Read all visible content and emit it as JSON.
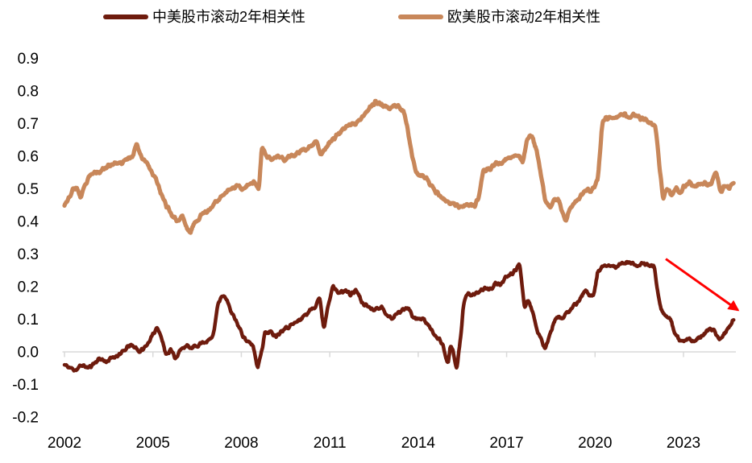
{
  "chart_data": {
    "type": "line",
    "title": "",
    "xlabel": "",
    "ylabel": "",
    "x_axis": {
      "ticks": [
        2002,
        2005,
        2008,
        2011,
        2014,
        2017,
        2020,
        2023
      ],
      "range": [
        2002,
        2024.9
      ],
      "gridlines": false
    },
    "y_axis": {
      "ticks": [
        0.9,
        0.8,
        0.7,
        0.6,
        0.5,
        0.4,
        0.3,
        0.2,
        0.1,
        0.0,
        -0.1,
        -0.2
      ],
      "range": [
        -0.2,
        0.9
      ],
      "gridlines": false,
      "zero_line": true
    },
    "colors": {
      "axis_line": "#d9d9d9",
      "tick_label": "#000000",
      "arrow": "#ff0000"
    },
    "legend_position": "top",
    "annotation_arrow": {
      "from": [
        2022.4,
        0.285
      ],
      "to": [
        2024.85,
        0.128
      ]
    },
    "series": [
      {
        "name": "中美股市滚动2年相关性",
        "color": "#6e1b0d",
        "points": [
          [
            2002.0,
            -0.04
          ],
          [
            2002.2,
            -0.05
          ],
          [
            2002.4,
            -0.055
          ],
          [
            2002.6,
            -0.04
          ],
          [
            2002.8,
            -0.05
          ],
          [
            2003.0,
            -0.035
          ],
          [
            2003.2,
            -0.02
          ],
          [
            2003.4,
            -0.03
          ],
          [
            2003.6,
            -0.02
          ],
          [
            2003.8,
            -0.01
          ],
          [
            2004.0,
            0.0
          ],
          [
            2004.2,
            0.02
          ],
          [
            2004.4,
            0.015
          ],
          [
            2004.55,
            0.0
          ],
          [
            2004.7,
            0.01
          ],
          [
            2004.85,
            0.03
          ],
          [
            2005.0,
            0.05
          ],
          [
            2005.15,
            0.08
          ],
          [
            2005.3,
            0.04
          ],
          [
            2005.45,
            -0.01
          ],
          [
            2005.6,
            0.01
          ],
          [
            2005.75,
            -0.02
          ],
          [
            2005.9,
            0.0
          ],
          [
            2006.1,
            0.02
          ],
          [
            2006.3,
            0.01
          ],
          [
            2006.5,
            0.02
          ],
          [
            2006.7,
            0.03
          ],
          [
            2006.9,
            0.035
          ],
          [
            2007.05,
            0.05
          ],
          [
            2007.2,
            0.15
          ],
          [
            2007.35,
            0.17
          ],
          [
            2007.5,
            0.165
          ],
          [
            2007.65,
            0.12
          ],
          [
            2007.8,
            0.1
          ],
          [
            2008.0,
            0.06
          ],
          [
            2008.2,
            0.03
          ],
          [
            2008.4,
            0.02
          ],
          [
            2008.55,
            -0.05
          ],
          [
            2008.7,
            0.01
          ],
          [
            2008.8,
            0.06
          ],
          [
            2009.0,
            0.06
          ],
          [
            2009.2,
            0.05
          ],
          [
            2009.4,
            0.07
          ],
          [
            2009.65,
            0.08
          ],
          [
            2009.85,
            0.09
          ],
          [
            2010.0,
            0.1
          ],
          [
            2010.25,
            0.12
          ],
          [
            2010.5,
            0.14
          ],
          [
            2010.65,
            0.17
          ],
          [
            2010.8,
            0.07
          ],
          [
            2010.95,
            0.15
          ],
          [
            2011.1,
            0.2
          ],
          [
            2011.3,
            0.18
          ],
          [
            2011.5,
            0.19
          ],
          [
            2011.7,
            0.175
          ],
          [
            2011.9,
            0.19
          ],
          [
            2012.1,
            0.15
          ],
          [
            2012.3,
            0.14
          ],
          [
            2012.5,
            0.13
          ],
          [
            2012.7,
            0.14
          ],
          [
            2012.9,
            0.12
          ],
          [
            2013.1,
            0.1
          ],
          [
            2013.3,
            0.12
          ],
          [
            2013.5,
            0.13
          ],
          [
            2013.65,
            0.14
          ],
          [
            2013.8,
            0.11
          ],
          [
            2014.0,
            0.1
          ],
          [
            2014.2,
            0.1
          ],
          [
            2014.35,
            0.08
          ],
          [
            2014.5,
            0.06
          ],
          [
            2014.65,
            0.045
          ],
          [
            2014.8,
            0.03
          ],
          [
            2014.9,
            0.0
          ],
          [
            2015.0,
            -0.04
          ],
          [
            2015.1,
            0.02
          ],
          [
            2015.2,
            0.0
          ],
          [
            2015.3,
            -0.06
          ],
          [
            2015.45,
            0.05
          ],
          [
            2015.55,
            0.16
          ],
          [
            2015.7,
            0.18
          ],
          [
            2015.85,
            0.17
          ],
          [
            2016.0,
            0.18
          ],
          [
            2016.15,
            0.19
          ],
          [
            2016.3,
            0.195
          ],
          [
            2016.45,
            0.19
          ],
          [
            2016.6,
            0.21
          ],
          [
            2016.75,
            0.205
          ],
          [
            2016.9,
            0.22
          ],
          [
            2017.1,
            0.235
          ],
          [
            2017.3,
            0.25
          ],
          [
            2017.45,
            0.27
          ],
          [
            2017.6,
            0.14
          ],
          [
            2017.75,
            0.16
          ],
          [
            2017.9,
            0.12
          ],
          [
            2018.05,
            0.06
          ],
          [
            2018.2,
            0.03
          ],
          [
            2018.3,
            0.01
          ],
          [
            2018.45,
            0.05
          ],
          [
            2018.6,
            0.09
          ],
          [
            2018.75,
            0.11
          ],
          [
            2018.9,
            0.1
          ],
          [
            2019.05,
            0.12
          ],
          [
            2019.2,
            0.13
          ],
          [
            2019.35,
            0.15
          ],
          [
            2019.5,
            0.16
          ],
          [
            2019.65,
            0.19
          ],
          [
            2019.8,
            0.17
          ],
          [
            2019.95,
            0.17
          ],
          [
            2020.1,
            0.25
          ],
          [
            2020.3,
            0.26
          ],
          [
            2020.5,
            0.265
          ],
          [
            2020.7,
            0.26
          ],
          [
            2020.9,
            0.27
          ],
          [
            2021.1,
            0.275
          ],
          [
            2021.3,
            0.27
          ],
          [
            2021.5,
            0.265
          ],
          [
            2021.7,
            0.27
          ],
          [
            2021.85,
            0.265
          ],
          [
            2022.0,
            0.265
          ],
          [
            2022.1,
            0.2
          ],
          [
            2022.25,
            0.13
          ],
          [
            2022.4,
            0.11
          ],
          [
            2022.55,
            0.1
          ],
          [
            2022.7,
            0.06
          ],
          [
            2022.85,
            0.035
          ],
          [
            2023.0,
            0.03
          ],
          [
            2023.15,
            0.04
          ],
          [
            2023.3,
            0.03
          ],
          [
            2023.45,
            0.04
          ],
          [
            2023.6,
            0.05
          ],
          [
            2023.75,
            0.06
          ],
          [
            2023.9,
            0.07
          ],
          [
            2024.05,
            0.065
          ],
          [
            2024.2,
            0.04
          ],
          [
            2024.35,
            0.05
          ],
          [
            2024.5,
            0.07
          ],
          [
            2024.6,
            0.08
          ],
          [
            2024.7,
            0.1
          ]
        ]
      },
      {
        "name": "欧美股市滚动2年相关性",
        "color": "#c8875a",
        "points": [
          [
            2002.0,
            0.455
          ],
          [
            2002.15,
            0.47
          ],
          [
            2002.3,
            0.5
          ],
          [
            2002.45,
            0.5
          ],
          [
            2002.55,
            0.47
          ],
          [
            2002.7,
            0.51
          ],
          [
            2002.9,
            0.545
          ],
          [
            2003.1,
            0.55
          ],
          [
            2003.3,
            0.56
          ],
          [
            2003.5,
            0.57
          ],
          [
            2003.7,
            0.58
          ],
          [
            2003.9,
            0.575
          ],
          [
            2004.1,
            0.59
          ],
          [
            2004.3,
            0.6
          ],
          [
            2004.45,
            0.64
          ],
          [
            2004.6,
            0.6
          ],
          [
            2004.75,
            0.585
          ],
          [
            2004.95,
            0.555
          ],
          [
            2005.1,
            0.53
          ],
          [
            2005.25,
            0.49
          ],
          [
            2005.45,
            0.45
          ],
          [
            2005.65,
            0.42
          ],
          [
            2005.85,
            0.4
          ],
          [
            2006.0,
            0.42
          ],
          [
            2006.1,
            0.39
          ],
          [
            2006.25,
            0.365
          ],
          [
            2006.45,
            0.4
          ],
          [
            2006.65,
            0.42
          ],
          [
            2006.85,
            0.43
          ],
          [
            2007.05,
            0.45
          ],
          [
            2007.25,
            0.47
          ],
          [
            2007.45,
            0.49
          ],
          [
            2007.65,
            0.5
          ],
          [
            2007.85,
            0.51
          ],
          [
            2008.05,
            0.5
          ],
          [
            2008.25,
            0.515
          ],
          [
            2008.45,
            0.52
          ],
          [
            2008.6,
            0.5
          ],
          [
            2008.7,
            0.63
          ],
          [
            2008.85,
            0.6
          ],
          [
            2009.05,
            0.59
          ],
          [
            2009.25,
            0.6
          ],
          [
            2009.45,
            0.59
          ],
          [
            2009.65,
            0.6
          ],
          [
            2009.85,
            0.605
          ],
          [
            2010.05,
            0.615
          ],
          [
            2010.3,
            0.625
          ],
          [
            2010.55,
            0.645
          ],
          [
            2010.7,
            0.605
          ],
          [
            2010.9,
            0.63
          ],
          [
            2011.1,
            0.655
          ],
          [
            2011.35,
            0.67
          ],
          [
            2011.6,
            0.695
          ],
          [
            2011.85,
            0.7
          ],
          [
            2012.1,
            0.72
          ],
          [
            2012.35,
            0.75
          ],
          [
            2012.55,
            0.765
          ],
          [
            2012.8,
            0.755
          ],
          [
            2013.05,
            0.75
          ],
          [
            2013.3,
            0.755
          ],
          [
            2013.5,
            0.74
          ],
          [
            2013.65,
            0.68
          ],
          [
            2013.8,
            0.6
          ],
          [
            2013.95,
            0.545
          ],
          [
            2014.1,
            0.54
          ],
          [
            2014.3,
            0.53
          ],
          [
            2014.5,
            0.5
          ],
          [
            2014.7,
            0.485
          ],
          [
            2014.9,
            0.465
          ],
          [
            2015.1,
            0.455
          ],
          [
            2015.3,
            0.45
          ],
          [
            2015.5,
            0.44
          ],
          [
            2015.7,
            0.455
          ],
          [
            2015.9,
            0.445
          ],
          [
            2016.05,
            0.47
          ],
          [
            2016.2,
            0.55
          ],
          [
            2016.4,
            0.56
          ],
          [
            2016.6,
            0.575
          ],
          [
            2016.8,
            0.58
          ],
          [
            2017.0,
            0.59
          ],
          [
            2017.2,
            0.6
          ],
          [
            2017.4,
            0.605
          ],
          [
            2017.55,
            0.58
          ],
          [
            2017.7,
            0.655
          ],
          [
            2017.85,
            0.665
          ],
          [
            2018.0,
            0.62
          ],
          [
            2018.15,
            0.55
          ],
          [
            2018.3,
            0.47
          ],
          [
            2018.45,
            0.44
          ],
          [
            2018.6,
            0.46
          ],
          [
            2018.75,
            0.47
          ],
          [
            2018.85,
            0.44
          ],
          [
            2019.0,
            0.4
          ],
          [
            2019.15,
            0.44
          ],
          [
            2019.3,
            0.46
          ],
          [
            2019.45,
            0.47
          ],
          [
            2019.6,
            0.49
          ],
          [
            2019.75,
            0.5
          ],
          [
            2019.85,
            0.49
          ],
          [
            2020.0,
            0.51
          ],
          [
            2020.1,
            0.53
          ],
          [
            2020.25,
            0.71
          ],
          [
            2020.4,
            0.72
          ],
          [
            2020.55,
            0.715
          ],
          [
            2020.7,
            0.72
          ],
          [
            2020.85,
            0.725
          ],
          [
            2021.0,
            0.73
          ],
          [
            2021.15,
            0.72
          ],
          [
            2021.3,
            0.725
          ],
          [
            2021.5,
            0.72
          ],
          [
            2021.7,
            0.71
          ],
          [
            2021.9,
            0.7
          ],
          [
            2022.05,
            0.69
          ],
          [
            2022.15,
            0.6
          ],
          [
            2022.3,
            0.47
          ],
          [
            2022.45,
            0.5
          ],
          [
            2022.6,
            0.48
          ],
          [
            2022.75,
            0.5
          ],
          [
            2022.9,
            0.49
          ],
          [
            2023.05,
            0.51
          ],
          [
            2023.2,
            0.52
          ],
          [
            2023.35,
            0.505
          ],
          [
            2023.5,
            0.515
          ],
          [
            2023.65,
            0.52
          ],
          [
            2023.8,
            0.51
          ],
          [
            2023.95,
            0.515
          ],
          [
            2024.1,
            0.56
          ],
          [
            2024.25,
            0.49
          ],
          [
            2024.4,
            0.51
          ],
          [
            2024.55,
            0.5
          ],
          [
            2024.7,
            0.52
          ]
        ]
      }
    ],
    "render_hints": {
      "noise_amplitude": 0.008,
      "resolution_years": 0.02,
      "noise_seeds": [
        11,
        23
      ]
    }
  },
  "legend": {
    "items": [
      {
        "label": "中美股市滚动2年相关性"
      },
      {
        "label": "欧美股市滚动2年相关性"
      }
    ]
  }
}
